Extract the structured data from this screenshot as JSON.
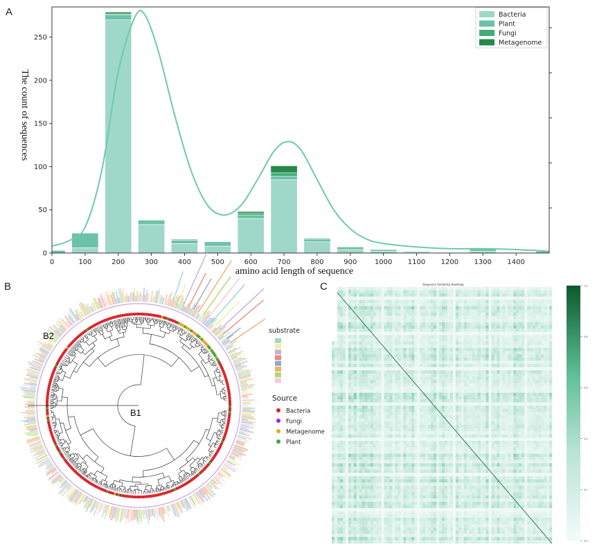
{
  "panels": {
    "a": "A",
    "b": "B",
    "c": "C"
  },
  "chart_data": [
    {
      "type": "bar",
      "panel": "A",
      "xlabel": "amino acid length of sequence",
      "ylabel": "The count of sequences",
      "xlim": [
        0,
        1500
      ],
      "ylim": [
        0,
        285
      ],
      "x_ticks": [
        0,
        100,
        200,
        300,
        400,
        500,
        600,
        700,
        800,
        900,
        1000,
        1100,
        1200,
        1300,
        1400
      ],
      "y_ticks": [
        0,
        50,
        100,
        150,
        200,
        250
      ],
      "legend_position": "top-right",
      "colors": {
        "Bacteria": "#9fd8c8",
        "Plant": "#6cc2a6",
        "Fungi": "#43ad7a",
        "Metagenome": "#27884c",
        "curve": "#6ccaaa"
      },
      "bins": [
        {
          "center": 20,
          "width": 40,
          "values": {
            "Bacteria": 0,
            "Plant": 3,
            "Fungi": 0,
            "Metagenome": 0
          }
        },
        {
          "center": 100,
          "width": 80,
          "values": {
            "Bacteria": 6,
            "Plant": 17,
            "Fungi": 0,
            "Metagenome": 0
          }
        },
        {
          "center": 200,
          "width": 80,
          "values": {
            "Bacteria": 270,
            "Plant": 6,
            "Fungi": 1,
            "Metagenome": 2
          }
        },
        {
          "center": 300,
          "width": 80,
          "values": {
            "Bacteria": 33,
            "Plant": 5,
            "Fungi": 0,
            "Metagenome": 0
          }
        },
        {
          "center": 400,
          "width": 80,
          "values": {
            "Bacteria": 11,
            "Plant": 4,
            "Fungi": 1,
            "Metagenome": 0
          }
        },
        {
          "center": 500,
          "width": 80,
          "values": {
            "Bacteria": 8,
            "Plant": 5,
            "Fungi": 0,
            "Metagenome": 0
          }
        },
        {
          "center": 600,
          "width": 80,
          "values": {
            "Bacteria": 40,
            "Plant": 4,
            "Fungi": 2,
            "Metagenome": 2
          }
        },
        {
          "center": 700,
          "width": 80,
          "values": {
            "Bacteria": 85,
            "Plant": 4,
            "Fungi": 4,
            "Metagenome": 8
          }
        },
        {
          "center": 800,
          "width": 80,
          "values": {
            "Bacteria": 13,
            "Plant": 3,
            "Fungi": 1,
            "Metagenome": 0
          }
        },
        {
          "center": 900,
          "width": 80,
          "values": {
            "Bacteria": 4,
            "Plant": 3,
            "Fungi": 0,
            "Metagenome": 0
          }
        },
        {
          "center": 1000,
          "width": 80,
          "values": {
            "Bacteria": 2,
            "Plant": 2,
            "Fungi": 0,
            "Metagenome": 0
          }
        },
        {
          "center": 1100,
          "width": 80,
          "values": {
            "Bacteria": 1,
            "Plant": 1,
            "Fungi": 0,
            "Metagenome": 0
          }
        },
        {
          "center": 1300,
          "width": 80,
          "values": {
            "Bacteria": 2,
            "Plant": 3,
            "Fungi": 0,
            "Metagenome": 0
          }
        },
        {
          "center": 1480,
          "width": 40,
          "values": {
            "Bacteria": 0,
            "Plant": 2,
            "Fungi": 0,
            "Metagenome": 0
          }
        }
      ],
      "kde_curve": [
        [
          0,
          8
        ],
        [
          50,
          14
        ],
        [
          100,
          30
        ],
        [
          150,
          95
        ],
        [
          200,
          210
        ],
        [
          250,
          273
        ],
        [
          280,
          276
        ],
        [
          320,
          235
        ],
        [
          370,
          160
        ],
        [
          420,
          95
        ],
        [
          470,
          55
        ],
        [
          520,
          44
        ],
        [
          570,
          55
        ],
        [
          620,
          85
        ],
        [
          670,
          118
        ],
        [
          710,
          129
        ],
        [
          750,
          120
        ],
        [
          800,
          85
        ],
        [
          850,
          50
        ],
        [
          900,
          28
        ],
        [
          950,
          16
        ],
        [
          1000,
          11
        ],
        [
          1100,
          7
        ],
        [
          1200,
          5
        ],
        [
          1300,
          5
        ],
        [
          1400,
          4
        ],
        [
          1500,
          2
        ]
      ]
    },
    {
      "type": "heatmap",
      "panel": "C",
      "title": "Sequence Similarity Heatmap",
      "colorbar_ticks": [
        "1.0",
        "0.8",
        "0.6",
        "0.4",
        "0.2",
        "0.0"
      ],
      "color_low": "#f4fbfa",
      "color_high": "#0b5a2c"
    }
  ],
  "tree": {
    "labels": {
      "b1": "B1",
      "b2": "B2"
    },
    "legend_substrate_title": "substrate",
    "substrate_colors": [
      "#9fd8c8",
      "#f3f0a0",
      "#c0b4d8",
      "#f08a7a",
      "#8aaad0",
      "#f0b070",
      "#b0d870",
      "#f8c8dc"
    ],
    "legend_source_title": "Source",
    "sources": [
      {
        "name": "Bacteria",
        "color": "#d8232a"
      },
      {
        "name": "Fungi",
        "color": "#a020f0"
      },
      {
        "name": "Metagenome",
        "color": "#f0a020"
      },
      {
        "name": "Plant",
        "color": "#38a838"
      }
    ]
  }
}
